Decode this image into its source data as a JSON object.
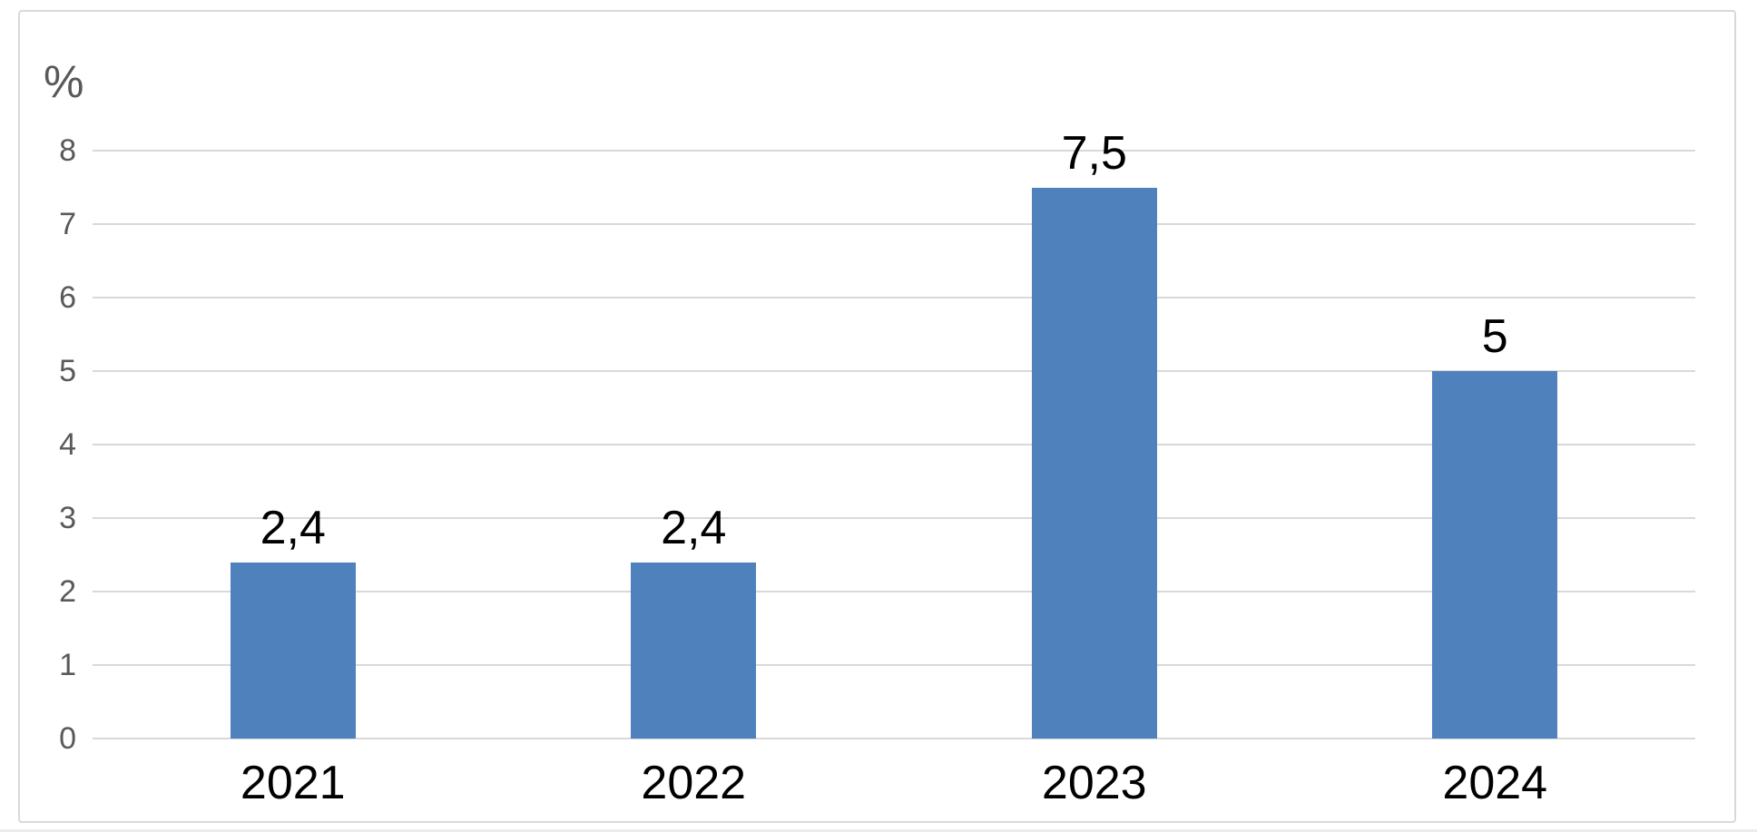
{
  "chart_data": {
    "type": "bar",
    "title": "",
    "xlabel": "",
    "ylabel": "%",
    "categories": [
      "2021",
      "2022",
      "2023",
      "2024"
    ],
    "values": [
      2.4,
      2.4,
      7.5,
      5
    ],
    "data_labels": [
      "2,4",
      "2,4",
      "7,5",
      "5"
    ],
    "ylim": [
      0,
      8
    ],
    "yticks": [
      0,
      1,
      2,
      3,
      4,
      5,
      6,
      7,
      8
    ],
    "grid": "horizontal",
    "legend": "none",
    "colors": {
      "bar": "#4f81bd",
      "gridline": "#d9d9d9",
      "frame_border": "#d9d9d9",
      "ytick_text": "#595959",
      "unit_label_text": "#595959",
      "category_text": "#000000",
      "data_label_text": "#000000",
      "background": "#ffffff"
    }
  }
}
